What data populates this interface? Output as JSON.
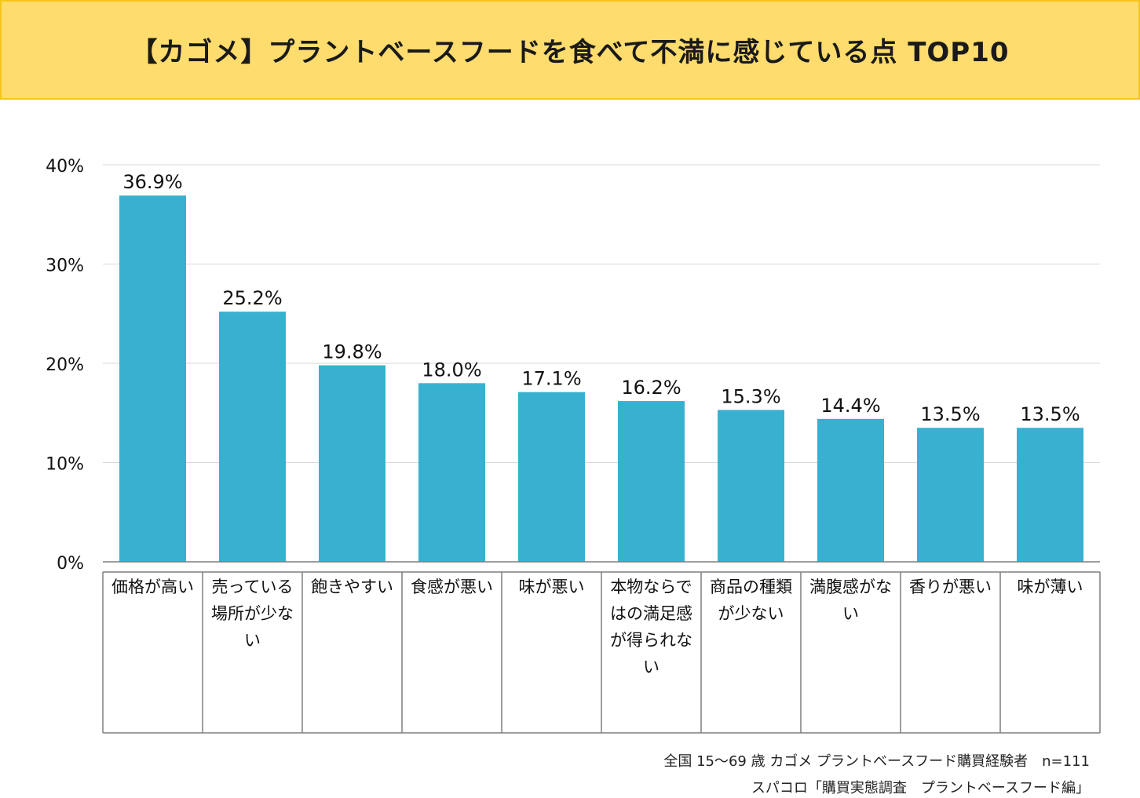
{
  "title": "【カゴメ】プラントベースフードを食べて不満に感じている点 TOP10",
  "chart_data": {
    "type": "bar",
    "title": "【カゴメ】プラントベースフードを食べて不満に感じている点 TOP10",
    "categories": [
      [
        "価格が高い"
      ],
      [
        "売っている",
        "場所が少な",
        "い"
      ],
      [
        "飽きやすい"
      ],
      [
        "食感が悪い"
      ],
      [
        "味が悪い"
      ],
      [
        "本物ならで",
        "はの満足感",
        "が得られな",
        "い"
      ],
      [
        "商品の種類",
        "が少ない"
      ],
      [
        "満腹感がな",
        "い"
      ],
      [
        "香りが悪い"
      ],
      [
        "味が薄い"
      ]
    ],
    "values": [
      36.9,
      25.2,
      19.8,
      18.0,
      17.1,
      16.2,
      15.3,
      14.4,
      13.5,
      13.5
    ],
    "value_labels": [
      "36.9%",
      "25.2%",
      "19.8%",
      "18.0%",
      "17.1%",
      "16.2%",
      "15.3%",
      "14.4%",
      "13.5%",
      "13.5%"
    ],
    "yticks": [
      "0%",
      "10%",
      "20%",
      "30%",
      "40%"
    ],
    "ylim": [
      0,
      40
    ],
    "grid": true,
    "bar_color": "#38b1d1"
  },
  "footer": {
    "line1": "全国 15～69 歳 カゴメ プラントベースフード購買経験者　n=111",
    "line2": "スパコロ「購買実態調査　プラントベースフード編」"
  }
}
